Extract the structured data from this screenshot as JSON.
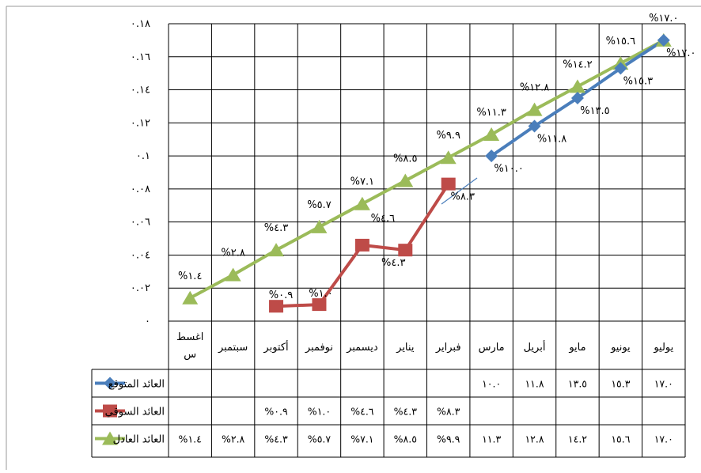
{
  "chart_data": {
    "type": "line",
    "title": "",
    "xlabel": "",
    "ylabel": "",
    "ylim": [
      0,
      0.18
    ],
    "grid": true,
    "legend": "data-table",
    "y_tick_labels": [
      "٠",
      "٠.٠٢",
      "٠.٠٤",
      "٠.٠٦",
      "٠.٠٨",
      "٠.١",
      "٠.١٢",
      "٠.١٤",
      "٠.١٦",
      "٠.١٨"
    ],
    "categories": [
      "اغسطس",
      "سبتمبر",
      "أكتوبر",
      "نوفمبر",
      "ديسمبر",
      "يناير",
      "فبراير",
      "مارس",
      "أبريل",
      "مايو",
      "يونيو",
      "يوليو"
    ],
    "series": [
      {
        "name": "العائد المتوقع",
        "color": "#4a7ebb",
        "marker": "diamond",
        "values": [
          null,
          null,
          null,
          null,
          null,
          null,
          null,
          0.1,
          0.118,
          0.135,
          0.153,
          0.17
        ],
        "data_labels": [
          "",
          "",
          "",
          "",
          "",
          "",
          "",
          "%١٠.٠",
          "%١١.٨",
          "%١٣.٥",
          "%١٥.٣",
          "%١٧.٠"
        ],
        "table_cells": [
          "",
          "",
          "",
          "",
          "",
          "",
          "",
          "١٠.٠",
          "١١.٨",
          "١٣.٥",
          "١٥.٣",
          "١٧.٠"
        ]
      },
      {
        "name": "العائد السوقي",
        "color": "#be4b48",
        "marker": "square",
        "values": [
          null,
          null,
          0.009,
          0.01,
          0.046,
          0.043,
          0.083,
          null,
          null,
          null,
          null,
          null
        ],
        "data_labels": [
          "",
          "",
          "%٠.٩",
          "%١.٠",
          "%٤.٦",
          "%٤.٣",
          "%٨.٣",
          "",
          "",
          "",
          "",
          ""
        ],
        "table_cells": [
          "",
          "",
          "%٠.٩",
          "%١.٠",
          "%٤.٦",
          "%٤.٣",
          "%٨.٣",
          "",
          "",
          "",
          "",
          ""
        ]
      },
      {
        "name": "العائد العادل",
        "color": "#9bbb59",
        "marker": "triangle",
        "values": [
          0.014,
          0.028,
          0.043,
          0.057,
          0.071,
          0.085,
          0.099,
          0.113,
          0.128,
          0.142,
          0.156,
          0.17
        ],
        "data_labels": [
          "%١.٤",
          "%٢.٨",
          "%٤.٣",
          "%٥.٧",
          "%٧.١",
          "%٨.٥",
          "%٩.٩",
          "%١١.٣",
          "%١٢.٨",
          "%١٤.٢",
          "%١٥.٦",
          "%١٧.٠"
        ],
        "table_cells": [
          "%١.٤",
          "%٢.٨",
          "%٤.٣",
          "%٥.٧",
          "%٧.١",
          "%٨.٥",
          "%٩.٩",
          "١١.٣",
          "١٢.٨",
          "١٤.٢",
          "١٥.٦",
          "١٧.٠"
        ]
      }
    ]
  }
}
